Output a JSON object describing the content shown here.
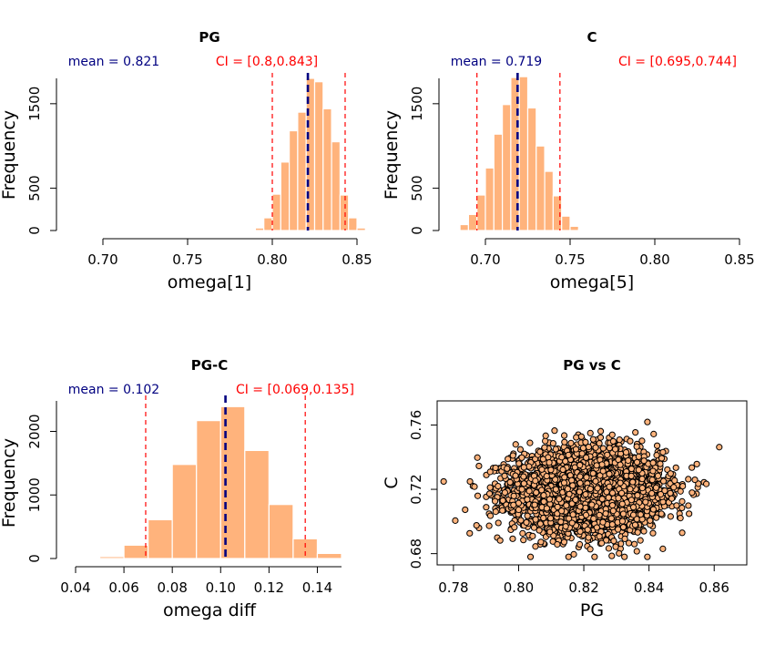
{
  "chart_data": [
    {
      "type": "bar",
      "title": "PG",
      "xlabel": "omega[1]",
      "ylabel": "Frequency",
      "xlim": [
        0.7,
        0.85
      ],
      "ylim": [
        0,
        1800
      ],
      "xticks": [
        "0.70",
        "0.75",
        "0.80",
        "0.85"
      ],
      "yticks": [
        "0",
        "500",
        "1500"
      ],
      "bin_width": 0.005,
      "bins": [
        0.79,
        0.795,
        0.8,
        0.805,
        0.81,
        0.815,
        0.82,
        0.825,
        0.83,
        0.835,
        0.84,
        0.845,
        0.85
      ],
      "values": [
        30,
        150,
        430,
        810,
        1180,
        1400,
        1800,
        1760,
        1440,
        1050,
        420,
        150,
        30
      ],
      "mean": 0.821,
      "ci": [
        0.8,
        0.843
      ],
      "mean_label": "mean = 0.821",
      "ci_label": "CI = [0.8,0.843]"
    },
    {
      "type": "bar",
      "title": "C",
      "xlabel": "omega[5]",
      "ylabel": "Frequency",
      "xlim": [
        0.7,
        0.85
      ],
      "ylim": [
        0,
        1800
      ],
      "xticks": [
        "0.70",
        "0.75",
        "0.80",
        "0.85"
      ],
      "yticks": [
        "0",
        "500",
        "1500"
      ],
      "bin_width": 0.005,
      "bins": [
        0.685,
        0.69,
        0.695,
        0.7,
        0.705,
        0.71,
        0.715,
        0.72,
        0.725,
        0.73,
        0.735,
        0.74,
        0.745,
        0.75,
        0.755
      ],
      "values": [
        70,
        190,
        420,
        740,
        1140,
        1490,
        1810,
        1820,
        1450,
        1000,
        700,
        410,
        170,
        50,
        10
      ],
      "mean": 0.719,
      "ci": [
        0.695,
        0.744
      ],
      "mean_label": "mean = 0.719",
      "ci_label": "CI = [0.695,0.744]"
    },
    {
      "type": "bar",
      "title": "PG-C",
      "xlabel": "omega diff",
      "ylabel": "Frequency",
      "xlim": [
        0.04,
        0.15
      ],
      "ylim": [
        0,
        2480
      ],
      "xticks": [
        "0.04",
        "0.06",
        "0.08",
        "0.10",
        "0.12",
        "0.14"
      ],
      "yticks": [
        "0",
        "1000",
        "2000"
      ],
      "bin_width": 0.01,
      "bins": [
        0.05,
        0.06,
        0.07,
        0.08,
        0.09,
        0.1,
        0.11,
        0.12,
        0.13,
        0.14
      ],
      "values": [
        30,
        210,
        610,
        1480,
        2170,
        2390,
        1700,
        850,
        310,
        80
      ],
      "mean": 0.102,
      "ci": [
        0.069,
        0.135
      ],
      "mean_label": "mean = 0.102",
      "ci_label": "CI = [0.069,0.135]"
    },
    {
      "type": "scatter",
      "title": "PG vs C",
      "xlabel": "PG",
      "ylabel": "C",
      "xlim": [
        0.775,
        0.87
      ],
      "ylim": [
        0.673,
        0.775
      ],
      "xticks": [
        "0.78",
        "0.80",
        "0.82",
        "0.84",
        "0.86"
      ],
      "yticks": [
        "0.68",
        "0.72",
        "0.76"
      ],
      "n_points": 4000,
      "x_mean": 0.821,
      "y_mean": 0.719,
      "x_sd": 0.0112,
      "y_sd": 0.0125,
      "x_range": [
        0.777,
        0.868
      ],
      "y_range": [
        0.678,
        0.774
      ]
    }
  ],
  "colors": {
    "bar_fill": "#FFB37C",
    "bar_edge": "#ffffff",
    "mean_line": "#000080",
    "ci_line": "#FF0000",
    "mean_text": "#000080",
    "ci_text": "#FF0000",
    "point_fill": "#FFB37C",
    "point_edge": "#000000"
  }
}
